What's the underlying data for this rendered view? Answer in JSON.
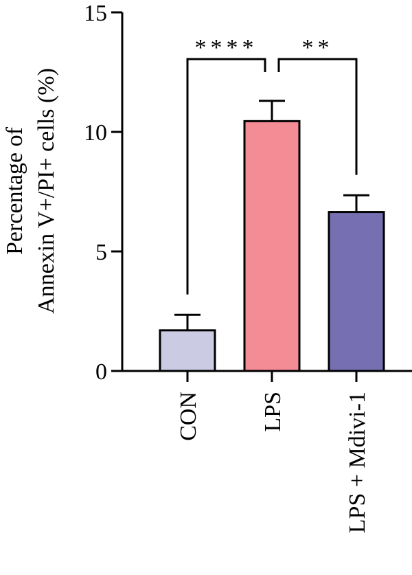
{
  "chart_data": {
    "type": "bar",
    "title": "",
    "xlabel": "",
    "ylabel_lines": [
      "Percentage of",
      "Annexin V+/PI+ cells (%)"
    ],
    "ylim": [
      0,
      15
    ],
    "yticks": [
      0,
      5,
      10,
      15
    ],
    "yticks_labels": [
      "0",
      "5",
      "10",
      "15"
    ],
    "grid": false,
    "categories": [
      "CON",
      "LPS",
      "LPS + Mdivi-1"
    ],
    "values": [
      1.7,
      10.45,
      6.65
    ],
    "errors": [
      0.65,
      0.85,
      0.7
    ],
    "colors": [
      "#cbcbe4",
      "#f48c96",
      "#7670b2"
    ],
    "significance": [
      {
        "from": 0,
        "to": 1,
        "label": "****"
      },
      {
        "from": 1,
        "to": 2,
        "label": "**"
      }
    ]
  }
}
